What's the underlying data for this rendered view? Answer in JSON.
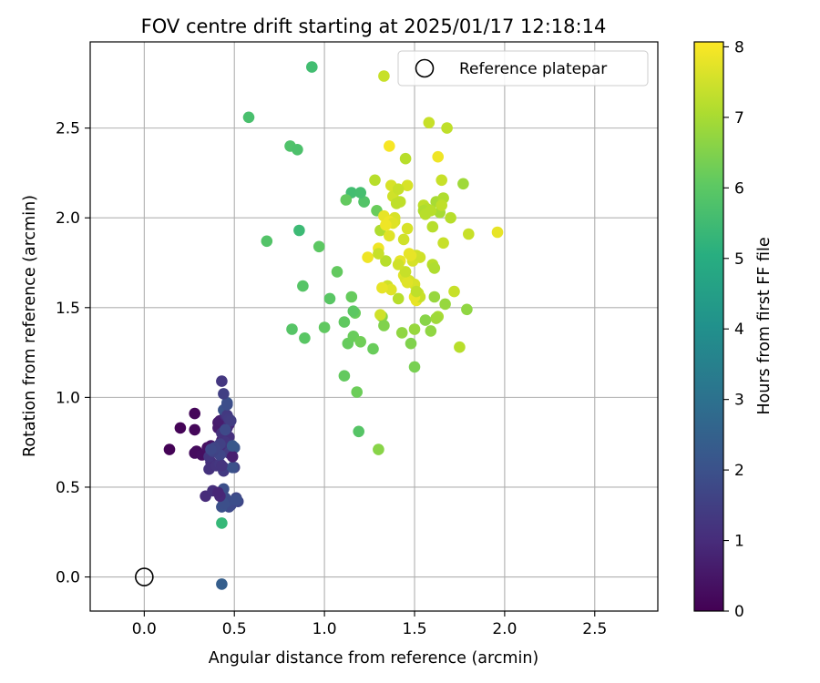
{
  "chart_data": {
    "type": "scatter",
    "title": "FOV centre drift starting at 2025/01/17 12:18:14",
    "xlabel": "Angular distance from reference (arcmin)",
    "ylabel": "Rotation from reference (arcmin)",
    "xlim": [
      -0.3,
      2.85
    ],
    "ylim": [
      -0.19,
      2.98
    ],
    "x_ticks": [
      0.0,
      0.5,
      1.0,
      1.5,
      2.0,
      2.5
    ],
    "x_tick_labels": [
      "0.0",
      "0.5",
      "1.0",
      "1.5",
      "2.0",
      "2.5"
    ],
    "y_ticks": [
      0.0,
      0.5,
      1.0,
      1.5,
      2.0,
      2.5
    ],
    "y_tick_labels": [
      "0.0",
      "0.5",
      "1.0",
      "1.5",
      "2.0",
      "2.5"
    ],
    "grid": true,
    "colormap": "viridis",
    "colorbar": {
      "label": "Hours from first FF file",
      "range": [
        0,
        8.07
      ],
      "ticks": [
        0,
        1,
        2,
        3,
        4,
        5,
        6,
        7,
        8
      ],
      "tick_labels": [
        "0",
        "1",
        "2",
        "3",
        "4",
        "5",
        "6",
        "7",
        "8"
      ]
    },
    "legend": {
      "position": "upper-right",
      "entries": [
        {
          "label": "Reference platepar",
          "marker": "open-circle"
        }
      ]
    },
    "reference_point": {
      "x": 0.0,
      "y": 0.0,
      "label": "Reference platepar"
    },
    "series": [
      {
        "x": [
          0.14,
          0.2,
          0.28,
          0.28,
          0.29,
          0.28,
          0.32,
          0.35,
          0.37,
          0.38,
          0.4,
          0.41,
          0.41,
          0.42,
          0.43,
          0.45,
          0.44,
          0.42,
          0.46,
          0.47,
          0.45,
          0.46,
          0.37,
          0.36,
          0.4,
          0.36,
          0.42,
          0.44,
          0.44,
          0.47,
          0.48,
          0.5,
          0.5,
          0.51,
          0.52,
          0.48,
          0.47,
          0.45,
          0.46,
          0.44,
          0.43,
          0.34,
          0.38,
          0.47,
          0.43,
          0.44,
          0.46,
          0.5,
          0.43,
          0.44,
          0.42,
          0.51,
          0.49,
          0.43,
          0.45,
          0.46,
          0.47,
          0.48,
          0.42,
          0.38,
          0.39,
          0.37,
          0.45,
          0.44,
          0.42,
          0.41,
          0.49,
          0.45,
          0.46,
          0.49,
          0.43
        ],
        "y": [
          0.71,
          0.83,
          0.91,
          0.82,
          0.7,
          0.69,
          0.68,
          0.72,
          0.73,
          0.7,
          0.72,
          0.86,
          0.83,
          0.87,
          0.76,
          0.8,
          0.78,
          0.73,
          0.83,
          0.85,
          0.9,
          0.71,
          0.64,
          0.6,
          0.62,
          0.67,
          0.63,
          0.59,
          0.61,
          0.69,
          0.73,
          0.72,
          0.61,
          0.44,
          0.42,
          0.4,
          0.39,
          0.41,
          0.42,
          0.49,
          0.39,
          0.45,
          0.48,
          0.78,
          0.8,
          0.93,
          0.97,
          0.72,
          1.09,
          1.02,
          0.68,
          0.43,
          0.61,
          0.62,
          0.75,
          0.9,
          0.88,
          0.87,
          0.74,
          0.7,
          0.72,
          0.71,
          0.44,
          0.41,
          0.45,
          0.47,
          0.67,
          0.82,
          0.96,
          0.73,
          -0.04
        ],
        "t": [
          0.05,
          0.08,
          0.12,
          0.15,
          0.2,
          0.25,
          0.3,
          0.35,
          0.4,
          0.45,
          0.5,
          0.55,
          0.6,
          0.65,
          0.7,
          0.75,
          0.8,
          0.85,
          0.9,
          0.95,
          1.0,
          1.05,
          1.1,
          1.15,
          1.2,
          1.25,
          1.3,
          1.35,
          1.4,
          1.45,
          1.5,
          1.55,
          1.6,
          1.65,
          1.7,
          1.75,
          1.8,
          1.85,
          1.9,
          1.95,
          2.0,
          1.0,
          1.05,
          1.1,
          1.15,
          2.05,
          2.1,
          2.15,
          1.3,
          1.5,
          1.7,
          1.9,
          2.0,
          1.2,
          1.25,
          1.35,
          1.4,
          1.45,
          1.55,
          1.6,
          1.65,
          1.75,
          1.85,
          1.95,
          0.9,
          0.85,
          0.7,
          1.8,
          1.9,
          2.2,
          2.4
        ]
      },
      {
        "x": [
          0.43,
          0.93,
          0.58,
          0.81,
          0.85,
          0.68,
          0.86,
          0.82,
          0.89,
          0.88,
          0.97,
          1.0,
          1.03,
          1.07,
          1.11,
          1.11,
          1.13,
          1.17,
          1.18,
          1.16,
          1.15,
          1.19,
          1.2,
          1.22,
          1.22,
          1.27,
          1.29,
          1.15,
          1.2,
          1.12,
          1.16
        ],
        "y": [
          0.3,
          2.84,
          2.56,
          2.4,
          2.38,
          1.87,
          1.93,
          1.38,
          1.33,
          1.62,
          1.84,
          1.39,
          1.55,
          1.7,
          1.12,
          1.42,
          1.3,
          1.47,
          1.03,
          1.34,
          1.56,
          0.81,
          1.31,
          2.09,
          2.09,
          1.27,
          2.04,
          2.14,
          2.14,
          2.1,
          1.48
        ],
        "t": [
          5.4,
          5.6,
          5.7,
          5.8,
          5.75,
          5.85,
          5.5,
          5.9,
          5.95,
          5.9,
          6.0,
          6.05,
          5.95,
          6.1,
          6.1,
          6.05,
          6.15,
          6.2,
          6.25,
          6.2,
          6.15,
          5.9,
          6.3,
          5.8,
          5.85,
          6.2,
          6.2,
          5.6,
          5.65,
          6.1,
          6.0
        ]
      },
      {
        "x": [
          1.3,
          1.33,
          1.28,
          1.31,
          1.32,
          1.33,
          1.35,
          1.36,
          1.37,
          1.38,
          1.39,
          1.41,
          1.42,
          1.43,
          1.44,
          1.45,
          1.46,
          1.47,
          1.48,
          1.49,
          1.5,
          1.51,
          1.52,
          1.53,
          1.55,
          1.56,
          1.58,
          1.59,
          1.6,
          1.61,
          1.62,
          1.63,
          1.64,
          1.65,
          1.66,
          1.67,
          1.68,
          1.72,
          1.75,
          1.77,
          1.79,
          1.8,
          1.96,
          1.46,
          1.47,
          1.5,
          1.31,
          1.34,
          1.36,
          1.39,
          1.42,
          1.44,
          1.49,
          1.53,
          1.57,
          1.61,
          1.63,
          1.3,
          1.35,
          1.4,
          1.45,
          1.51,
          1.24,
          1.33,
          1.37,
          1.41,
          1.46,
          1.5,
          1.55,
          1.6,
          1.65,
          1.7,
          1.36,
          1.48,
          1.59,
          1.62,
          1.45,
          1.51,
          1.66,
          1.56,
          1.41,
          1.38,
          1.3,
          1.32,
          1.34,
          1.5
        ],
        "y": [
          0.71,
          2.79,
          2.21,
          1.93,
          1.45,
          1.4,
          1.62,
          2.4,
          2.18,
          2.12,
          1.98,
          1.55,
          2.09,
          1.36,
          1.68,
          2.33,
          2.18,
          1.65,
          1.3,
          1.79,
          1.17,
          1.54,
          1.58,
          1.78,
          2.07,
          1.43,
          2.53,
          1.37,
          1.74,
          1.56,
          2.09,
          2.34,
          2.03,
          2.21,
          2.11,
          1.52,
          2.5,
          1.59,
          1.28,
          2.19,
          1.49,
          1.91,
          1.92,
          1.94,
          1.8,
          1.63,
          1.46,
          1.76,
          1.9,
          2.0,
          1.76,
          1.88,
          1.76,
          1.56,
          2.05,
          1.72,
          1.45,
          1.83,
          1.62,
          2.08,
          1.66,
          1.79,
          1.78,
          2.01,
          1.6,
          2.16,
          1.64,
          1.56,
          2.04,
          1.95,
          2.07,
          2.0,
          1.98,
          1.79,
          2.04,
          1.44,
          1.7,
          1.59,
          1.86,
          2.02,
          1.74,
          1.97,
          1.8,
          1.61,
          1.96,
          1.38
        ],
        "t": [
          6.6,
          7.4,
          7.2,
          7.1,
          6.6,
          6.5,
          7.3,
          8.0,
          7.6,
          7.5,
          7.6,
          7.2,
          7.3,
          6.7,
          7.7,
          7.2,
          7.6,
          7.6,
          6.5,
          7.7,
          6.4,
          7.8,
          7.4,
          7.5,
          7.3,
          6.6,
          7.4,
          6.7,
          7.2,
          6.8,
          7.0,
          7.9,
          7.0,
          7.4,
          7.1,
          6.8,
          7.3,
          7.4,
          7.2,
          6.9,
          6.7,
          7.4,
          7.8,
          7.6,
          7.8,
          7.6,
          7.5,
          7.2,
          7.7,
          7.6,
          7.8,
          7.5,
          7.6,
          7.4,
          7.2,
          7.1,
          7.0,
          7.9,
          7.5,
          7.3,
          7.6,
          7.5,
          7.9,
          7.8,
          7.7,
          7.4,
          7.7,
          7.8,
          7.1,
          7.2,
          7.3,
          7.2,
          7.9,
          7.8,
          7.2,
          6.9,
          7.4,
          7.3,
          7.4,
          7.2,
          7.5,
          7.7,
          7.4,
          7.8,
          7.9,
          6.8
        ]
      }
    ]
  }
}
